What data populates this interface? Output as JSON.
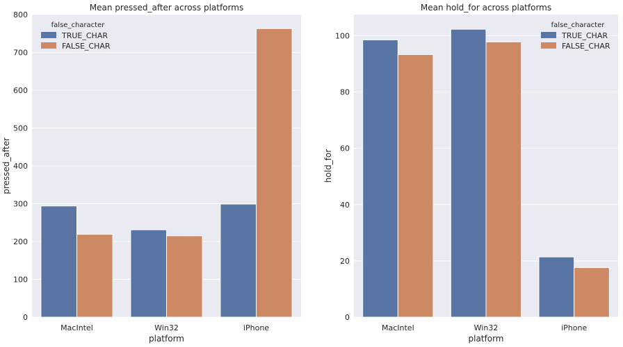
{
  "chart_data": [
    {
      "type": "bar",
      "title": "Mean pressed_after across platforms",
      "xlabel": "platform",
      "ylabel": "pressed_after",
      "categories": [
        "MacIntel",
        "Win32",
        "iPhone"
      ],
      "ylim": [
        0,
        800
      ],
      "yticks": [
        0,
        100,
        200,
        300,
        400,
        500,
        600,
        700,
        800
      ],
      "legend_title": "false_character",
      "legend_position": "top-left",
      "grid": true,
      "series": [
        {
          "name": "TRUE_CHAR",
          "color": "#5875a4",
          "values": [
            294,
            231,
            299
          ]
        },
        {
          "name": "FALSE_CHAR",
          "color": "#cc8963",
          "values": [
            219,
            215,
            763
          ]
        }
      ]
    },
    {
      "type": "bar",
      "title": "Mean hold_for across platforms",
      "xlabel": "platform",
      "ylabel": "hold_for",
      "categories": [
        "MacIntel",
        "Win32",
        "iPhone"
      ],
      "ylim": [
        0,
        107.5
      ],
      "yticks": [
        0,
        20,
        40,
        60,
        80,
        100
      ],
      "legend_title": "false_character",
      "legend_position": "top-right",
      "grid": true,
      "series": [
        {
          "name": "TRUE_CHAR",
          "color": "#5875a4",
          "values": [
            98.5,
            102.3,
            21.4
          ]
        },
        {
          "name": "FALSE_CHAR",
          "color": "#cc8963",
          "values": [
            93.3,
            97.8,
            17.6
          ]
        }
      ]
    }
  ]
}
